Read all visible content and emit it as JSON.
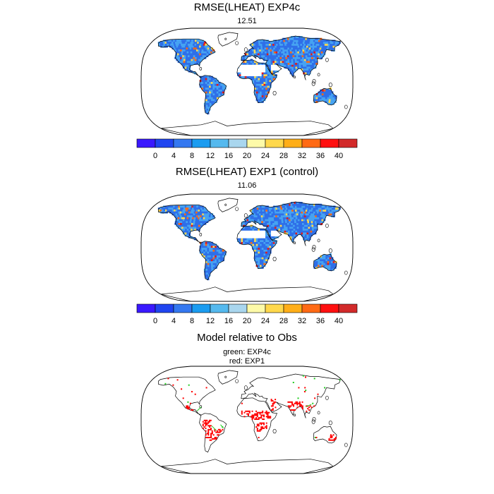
{
  "panels": [
    {
      "title": "RMSE(LHEAT) EXP4c",
      "subtitle": "12.51"
    },
    {
      "title": "RMSE(LHEAT) EXP1 (control)",
      "subtitle": "11.06"
    },
    {
      "title": "Model relative to Obs",
      "legend_lines": [
        "green: EXP4c",
        "red: EXP1"
      ]
    }
  ],
  "colorbar": {
    "ticks": [
      "0",
      "4",
      "8",
      "12",
      "16",
      "20",
      "24",
      "28",
      "32",
      "36",
      "40"
    ],
    "colors": [
      "#3a19ff",
      "#2045f0",
      "#3478f0",
      "#1b9cf0",
      "#55b9ee",
      "#a9d6ee",
      "#fdfaa8",
      "#ffd84c",
      "#ffae18",
      "#ff6a14",
      "#ff1010",
      "#d22a2a"
    ]
  },
  "colors": {
    "field_base": "#46a3f2",
    "field_low": "#2f6fe8",
    "field_mid": "#ffd84c",
    "field_high": "#ff6a14",
    "field_max": "#e21b1b",
    "better_model": "#22cc22",
    "worse_model": "#ff0000"
  }
}
